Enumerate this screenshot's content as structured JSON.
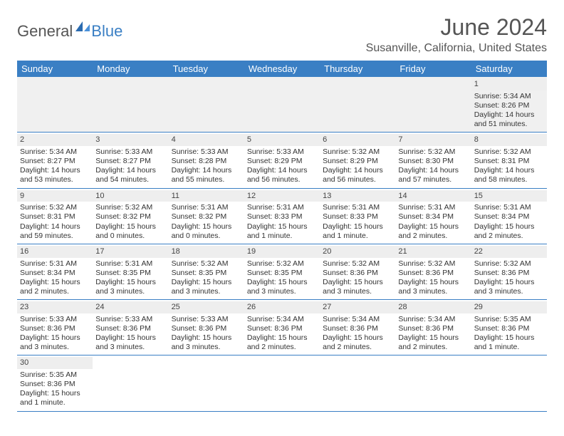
{
  "logo": {
    "part1": "General",
    "part2": "Blue"
  },
  "title": "June 2024",
  "location": "Susanville, California, United States",
  "dow": [
    "Sunday",
    "Monday",
    "Tuesday",
    "Wednesday",
    "Thursday",
    "Friday",
    "Saturday"
  ],
  "colors": {
    "header_bg": "#3a7fc4",
    "header_text": "#ffffff",
    "daynum_bg": "#eeeeee",
    "border": "#3a7fc4",
    "title_color": "#555555",
    "body_text": "#333333"
  },
  "weeks": [
    [
      {
        "n": "",
        "t": ""
      },
      {
        "n": "",
        "t": ""
      },
      {
        "n": "",
        "t": ""
      },
      {
        "n": "",
        "t": ""
      },
      {
        "n": "",
        "t": ""
      },
      {
        "n": "",
        "t": ""
      },
      {
        "n": "1",
        "t": "Sunrise: 5:34 AM\nSunset: 8:26 PM\nDaylight: 14 hours and 51 minutes."
      }
    ],
    [
      {
        "n": "2",
        "t": "Sunrise: 5:34 AM\nSunset: 8:27 PM\nDaylight: 14 hours and 53 minutes."
      },
      {
        "n": "3",
        "t": "Sunrise: 5:33 AM\nSunset: 8:27 PM\nDaylight: 14 hours and 54 minutes."
      },
      {
        "n": "4",
        "t": "Sunrise: 5:33 AM\nSunset: 8:28 PM\nDaylight: 14 hours and 55 minutes."
      },
      {
        "n": "5",
        "t": "Sunrise: 5:33 AM\nSunset: 8:29 PM\nDaylight: 14 hours and 56 minutes."
      },
      {
        "n": "6",
        "t": "Sunrise: 5:32 AM\nSunset: 8:29 PM\nDaylight: 14 hours and 56 minutes."
      },
      {
        "n": "7",
        "t": "Sunrise: 5:32 AM\nSunset: 8:30 PM\nDaylight: 14 hours and 57 minutes."
      },
      {
        "n": "8",
        "t": "Sunrise: 5:32 AM\nSunset: 8:31 PM\nDaylight: 14 hours and 58 minutes."
      }
    ],
    [
      {
        "n": "9",
        "t": "Sunrise: 5:32 AM\nSunset: 8:31 PM\nDaylight: 14 hours and 59 minutes."
      },
      {
        "n": "10",
        "t": "Sunrise: 5:32 AM\nSunset: 8:32 PM\nDaylight: 15 hours and 0 minutes."
      },
      {
        "n": "11",
        "t": "Sunrise: 5:31 AM\nSunset: 8:32 PM\nDaylight: 15 hours and 0 minutes."
      },
      {
        "n": "12",
        "t": "Sunrise: 5:31 AM\nSunset: 8:33 PM\nDaylight: 15 hours and 1 minute."
      },
      {
        "n": "13",
        "t": "Sunrise: 5:31 AM\nSunset: 8:33 PM\nDaylight: 15 hours and 1 minute."
      },
      {
        "n": "14",
        "t": "Sunrise: 5:31 AM\nSunset: 8:34 PM\nDaylight: 15 hours and 2 minutes."
      },
      {
        "n": "15",
        "t": "Sunrise: 5:31 AM\nSunset: 8:34 PM\nDaylight: 15 hours and 2 minutes."
      }
    ],
    [
      {
        "n": "16",
        "t": "Sunrise: 5:31 AM\nSunset: 8:34 PM\nDaylight: 15 hours and 2 minutes."
      },
      {
        "n": "17",
        "t": "Sunrise: 5:31 AM\nSunset: 8:35 PM\nDaylight: 15 hours and 3 minutes."
      },
      {
        "n": "18",
        "t": "Sunrise: 5:32 AM\nSunset: 8:35 PM\nDaylight: 15 hours and 3 minutes."
      },
      {
        "n": "19",
        "t": "Sunrise: 5:32 AM\nSunset: 8:35 PM\nDaylight: 15 hours and 3 minutes."
      },
      {
        "n": "20",
        "t": "Sunrise: 5:32 AM\nSunset: 8:36 PM\nDaylight: 15 hours and 3 minutes."
      },
      {
        "n": "21",
        "t": "Sunrise: 5:32 AM\nSunset: 8:36 PM\nDaylight: 15 hours and 3 minutes."
      },
      {
        "n": "22",
        "t": "Sunrise: 5:32 AM\nSunset: 8:36 PM\nDaylight: 15 hours and 3 minutes."
      }
    ],
    [
      {
        "n": "23",
        "t": "Sunrise: 5:33 AM\nSunset: 8:36 PM\nDaylight: 15 hours and 3 minutes."
      },
      {
        "n": "24",
        "t": "Sunrise: 5:33 AM\nSunset: 8:36 PM\nDaylight: 15 hours and 3 minutes."
      },
      {
        "n": "25",
        "t": "Sunrise: 5:33 AM\nSunset: 8:36 PM\nDaylight: 15 hours and 3 minutes."
      },
      {
        "n": "26",
        "t": "Sunrise: 5:34 AM\nSunset: 8:36 PM\nDaylight: 15 hours and 2 minutes."
      },
      {
        "n": "27",
        "t": "Sunrise: 5:34 AM\nSunset: 8:36 PM\nDaylight: 15 hours and 2 minutes."
      },
      {
        "n": "28",
        "t": "Sunrise: 5:34 AM\nSunset: 8:36 PM\nDaylight: 15 hours and 2 minutes."
      },
      {
        "n": "29",
        "t": "Sunrise: 5:35 AM\nSunset: 8:36 PM\nDaylight: 15 hours and 1 minute."
      }
    ],
    [
      {
        "n": "30",
        "t": "Sunrise: 5:35 AM\nSunset: 8:36 PM\nDaylight: 15 hours and 1 minute."
      },
      {
        "n": "",
        "t": ""
      },
      {
        "n": "",
        "t": ""
      },
      {
        "n": "",
        "t": ""
      },
      {
        "n": "",
        "t": ""
      },
      {
        "n": "",
        "t": ""
      },
      {
        "n": "",
        "t": ""
      }
    ]
  ]
}
